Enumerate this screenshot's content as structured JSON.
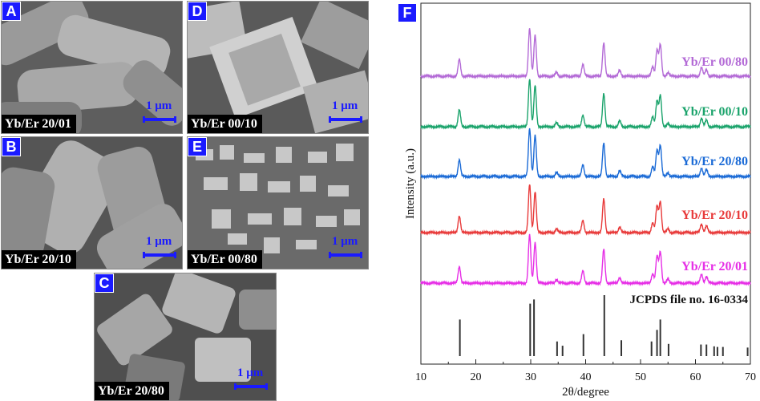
{
  "panels": [
    {
      "id": "A",
      "caption": "Yb/Er 20/01",
      "scale": "1 μm"
    },
    {
      "id": "B",
      "caption": "Yb/Er 20/10",
      "scale": "1 μm"
    },
    {
      "id": "C",
      "caption": "Yb/Er 20/80",
      "scale": "1 μm"
    },
    {
      "id": "D",
      "caption": "Yb/Er 00/10",
      "scale": "1 μm"
    },
    {
      "id": "E",
      "caption": "Yb/Er 00/80",
      "scale": "1 μm"
    }
  ],
  "chart_panel_label": "F",
  "chart_data": {
    "type": "line",
    "xlabel": "2θ/degree",
    "ylabel": "Intensity (a.u.)",
    "xlim": [
      10,
      70
    ],
    "xticks": [
      10,
      20,
      30,
      40,
      50,
      60,
      70
    ],
    "series": [
      {
        "name": "Yb/Er 00/80",
        "color": "#b36ad6"
      },
      {
        "name": "Yb/Er 00/10",
        "color": "#1aa36b"
      },
      {
        "name": "Yb/Er 20/80",
        "color": "#1a6ad6"
      },
      {
        "name": "Yb/Er 20/10",
        "color": "#e83a3a"
      },
      {
        "name": "Yb/Er 20/01",
        "color": "#e62ee6"
      }
    ],
    "peaks": [
      {
        "x": 17.0,
        "h": 0.35
      },
      {
        "x": 29.8,
        "h": 1.0
      },
      {
        "x": 30.8,
        "h": 0.85
      },
      {
        "x": 34.7,
        "h": 0.08
      },
      {
        "x": 39.5,
        "h": 0.25
      },
      {
        "x": 43.3,
        "h": 0.7
      },
      {
        "x": 46.2,
        "h": 0.12
      },
      {
        "x": 52.2,
        "h": 0.2
      },
      {
        "x": 53.0,
        "h": 0.55
      },
      {
        "x": 53.6,
        "h": 0.65
      },
      {
        "x": 55.0,
        "h": 0.08
      },
      {
        "x": 61.1,
        "h": 0.18
      },
      {
        "x": 62.0,
        "h": 0.14
      }
    ],
    "reference": {
      "label": "JCPDS file no. 16-0334",
      "lines": [
        {
          "x": 17.1,
          "h": 0.6
        },
        {
          "x": 29.9,
          "h": 0.86
        },
        {
          "x": 30.6,
          "h": 0.93
        },
        {
          "x": 34.8,
          "h": 0.24
        },
        {
          "x": 35.8,
          "h": 0.17
        },
        {
          "x": 39.6,
          "h": 0.36
        },
        {
          "x": 43.4,
          "h": 1.0
        },
        {
          "x": 46.5,
          "h": 0.26
        },
        {
          "x": 52.0,
          "h": 0.24
        },
        {
          "x": 53.0,
          "h": 0.43
        },
        {
          "x": 53.6,
          "h": 0.6
        },
        {
          "x": 55.1,
          "h": 0.2
        },
        {
          "x": 61.0,
          "h": 0.19
        },
        {
          "x": 62.0,
          "h": 0.19
        },
        {
          "x": 63.4,
          "h": 0.16
        },
        {
          "x": 64.0,
          "h": 0.15
        },
        {
          "x": 65.0,
          "h": 0.15
        },
        {
          "x": 69.5,
          "h": 0.14
        }
      ]
    }
  }
}
